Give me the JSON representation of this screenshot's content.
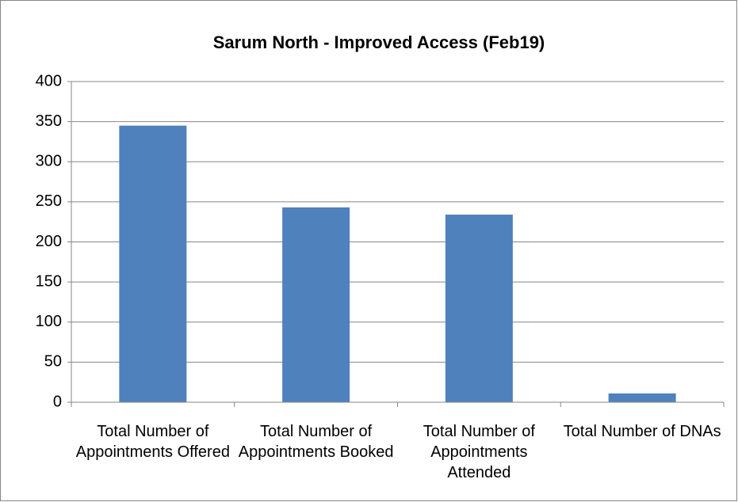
{
  "chart_data": {
    "type": "bar",
    "title": "Sarum North - Improved Access (Feb19)",
    "categories": [
      "Total Number of Appointments Offered",
      "Total Number of Appointments Booked",
      "Total Number of Appointments Attended",
      "Total Number of DNAs"
    ],
    "values": [
      345,
      243,
      234,
      11
    ],
    "color": "#4f81bd",
    "ylim": [
      0,
      400
    ],
    "yticks": [
      0,
      50,
      100,
      150,
      200,
      250,
      300,
      350,
      400
    ],
    "grid": true
  }
}
